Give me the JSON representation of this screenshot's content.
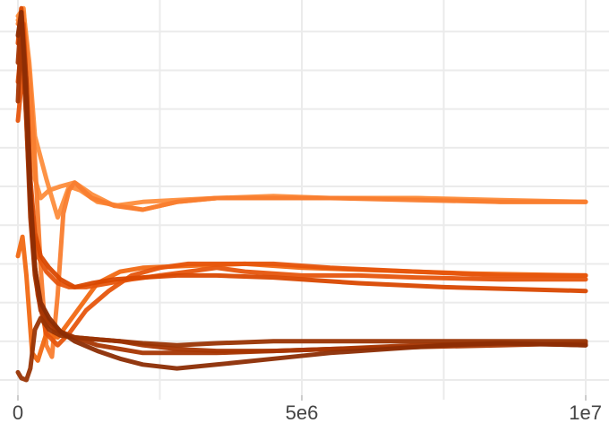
{
  "chart_data": {
    "type": "line",
    "title": "",
    "xlabel": "",
    "ylabel": "",
    "xlim": [
      0,
      10000000
    ],
    "ylim": [
      0,
      10
    ],
    "grid": true,
    "legend": "none",
    "x_ticks": [
      {
        "value": 0,
        "label": "0"
      },
      {
        "value": 5000000,
        "label": "5e6"
      },
      {
        "value": 10000000,
        "label": "1e7"
      }
    ],
    "y_gridlines": [
      0.3,
      1.3,
      2.3,
      3.3,
      4.3,
      5.3,
      6.3,
      7.3,
      8.3,
      9.3
    ],
    "series": [
      {
        "color": "#fd8d3c",
        "points": [
          [
            0,
            9.6
          ],
          [
            100000,
            9.8
          ],
          [
            200000,
            8.5
          ],
          [
            300000,
            6.6
          ],
          [
            500000,
            5.5
          ],
          [
            700000,
            4.5
          ],
          [
            900000,
            5.3
          ],
          [
            1100000,
            5.2
          ],
          [
            1400000,
            4.9
          ],
          [
            1800000,
            4.8
          ],
          [
            2200000,
            4.7
          ],
          [
            2800000,
            4.9
          ],
          [
            3500000,
            5.0
          ],
          [
            4500000,
            5.0
          ],
          [
            5500000,
            5.0
          ],
          [
            7000000,
            5.0
          ],
          [
            8500000,
            4.9
          ],
          [
            10000000,
            4.9
          ]
        ]
      },
      {
        "color": "#fd8d3c",
        "points": [
          [
            0,
            9.7
          ],
          [
            100000,
            9.9
          ],
          [
            200000,
            8.0
          ],
          [
            300000,
            5.5
          ],
          [
            400000,
            5.0
          ],
          [
            550000,
            5.2
          ],
          [
            750000,
            5.3
          ],
          [
            1000000,
            5.4
          ],
          [
            1300000,
            5.1
          ],
          [
            1700000,
            4.8
          ],
          [
            2200000,
            4.9
          ],
          [
            2800000,
            4.95
          ],
          [
            3500000,
            5.0
          ],
          [
            4500000,
            5.05
          ],
          [
            5500000,
            5.0
          ],
          [
            7000000,
            5.0
          ],
          [
            8500000,
            4.95
          ],
          [
            10000000,
            4.9
          ]
        ]
      },
      {
        "color": "#f97d2f",
        "points": [
          [
            0,
            9.5
          ],
          [
            80000,
            9.8
          ],
          [
            200000,
            8.2
          ],
          [
            300000,
            6.0
          ],
          [
            400000,
            3.2
          ],
          [
            500000,
            1.2
          ],
          [
            600000,
            0.9
          ],
          [
            700000,
            2.5
          ],
          [
            800000,
            4.6
          ],
          [
            900000,
            5.2
          ],
          [
            1000000,
            5.4
          ],
          [
            1300000,
            5.0
          ],
          [
            1700000,
            4.8
          ],
          [
            2200000,
            4.7
          ],
          [
            2800000,
            4.9
          ],
          [
            3500000,
            5.0
          ],
          [
            4500000,
            5.0
          ],
          [
            5500000,
            5.0
          ],
          [
            7000000,
            4.95
          ],
          [
            8500000,
            4.9
          ],
          [
            10000000,
            4.9
          ]
        ]
      },
      {
        "color": "#f16913",
        "points": [
          [
            0,
            3.5
          ],
          [
            80000,
            4.0
          ],
          [
            150000,
            3.0
          ],
          [
            250000,
            1.0
          ],
          [
            350000,
            0.8
          ],
          [
            500000,
            1.5
          ],
          [
            700000,
            1.4
          ],
          [
            1000000,
            2.0
          ],
          [
            1400000,
            2.8
          ],
          [
            1800000,
            3.1
          ],
          [
            2200000,
            3.2
          ],
          [
            3000000,
            3.25
          ],
          [
            4000000,
            3.3
          ],
          [
            5000000,
            3.2
          ],
          [
            6000000,
            3.15
          ],
          [
            7000000,
            3.1
          ],
          [
            8000000,
            3.05
          ],
          [
            10000000,
            3.0
          ]
        ]
      },
      {
        "color": "#e6550d",
        "points": [
          [
            0,
            8.0
          ],
          [
            100000,
            9.5
          ],
          [
            180000,
            7.0
          ],
          [
            250000,
            4.0
          ],
          [
            350000,
            2.5
          ],
          [
            500000,
            1.5
          ],
          [
            700000,
            1.2
          ],
          [
            900000,
            1.5
          ],
          [
            1200000,
            2.1
          ],
          [
            1600000,
            2.6
          ],
          [
            2000000,
            3.0
          ],
          [
            2500000,
            3.2
          ],
          [
            3000000,
            3.3
          ],
          [
            3500000,
            3.3
          ],
          [
            4500000,
            3.3
          ],
          [
            5500000,
            3.2
          ],
          [
            7000000,
            3.1
          ],
          [
            8500000,
            3.0
          ],
          [
            10000000,
            3.0
          ]
        ]
      },
      {
        "color": "#e6550d",
        "points": [
          [
            0,
            7.0
          ],
          [
            100000,
            8.5
          ],
          [
            180000,
            6.0
          ],
          [
            250000,
            4.2
          ],
          [
            350000,
            3.5
          ],
          [
            500000,
            3.1
          ],
          [
            700000,
            2.8
          ],
          [
            900000,
            2.7
          ],
          [
            1200000,
            2.7
          ],
          [
            1600000,
            2.8
          ],
          [
            2000000,
            2.9
          ],
          [
            2500000,
            3.0
          ],
          [
            3000000,
            3.1
          ],
          [
            3500000,
            3.2
          ],
          [
            4000000,
            3.1
          ],
          [
            5000000,
            3.0
          ],
          [
            6000000,
            3.0
          ],
          [
            7000000,
            2.95
          ],
          [
            8500000,
            2.9
          ],
          [
            10000000,
            2.9
          ]
        ]
      },
      {
        "color": "#d94801",
        "points": [
          [
            0,
            9.0
          ],
          [
            60000,
            9.9
          ],
          [
            150000,
            8.0
          ],
          [
            220000,
            5.5
          ],
          [
            300000,
            4.1
          ],
          [
            400000,
            3.5
          ],
          [
            550000,
            3.2
          ],
          [
            750000,
            2.9
          ],
          [
            1000000,
            2.7
          ],
          [
            1300000,
            2.8
          ],
          [
            1700000,
            2.9
          ],
          [
            2200000,
            2.95
          ],
          [
            2800000,
            3.0
          ],
          [
            3500000,
            3.0
          ],
          [
            4500000,
            2.95
          ],
          [
            6000000,
            2.8
          ],
          [
            7500000,
            2.7
          ],
          [
            10000000,
            2.6
          ]
        ]
      },
      {
        "color": "#a63603",
        "points": [
          [
            0,
            8.5
          ],
          [
            60000,
            9.8
          ],
          [
            150000,
            8.0
          ],
          [
            220000,
            5.2
          ],
          [
            300000,
            3.2
          ],
          [
            400000,
            2.2
          ],
          [
            550000,
            1.8
          ],
          [
            750000,
            1.55
          ],
          [
            1000000,
            1.4
          ],
          [
            1400000,
            1.2
          ],
          [
            1800000,
            1.1
          ],
          [
            2200000,
            1.0
          ],
          [
            2800000,
            1.0
          ],
          [
            3500000,
            1.0
          ],
          [
            4500000,
            1.05
          ],
          [
            5500000,
            1.1
          ],
          [
            7000000,
            1.2
          ],
          [
            8500000,
            1.25
          ],
          [
            10000000,
            1.2
          ]
        ]
      },
      {
        "color": "#a63603",
        "points": [
          [
            0,
            7.5
          ],
          [
            60000,
            9.5
          ],
          [
            150000,
            7.0
          ],
          [
            220000,
            4.5
          ],
          [
            300000,
            3.0
          ],
          [
            400000,
            2.1
          ],
          [
            550000,
            1.7
          ],
          [
            750000,
            1.5
          ],
          [
            1000000,
            1.4
          ],
          [
            1400000,
            1.35
          ],
          [
            1800000,
            1.3
          ],
          [
            2200000,
            1.2
          ],
          [
            2800000,
            1.1
          ],
          [
            3500000,
            1.05
          ],
          [
            4500000,
            1.05
          ],
          [
            5500000,
            1.1
          ],
          [
            7000000,
            1.15
          ],
          [
            8500000,
            1.2
          ],
          [
            10000000,
            1.25
          ]
        ]
      },
      {
        "color": "#993404",
        "points": [
          [
            0,
            0.5
          ],
          [
            60000,
            0.35
          ],
          [
            150000,
            0.3
          ],
          [
            220000,
            0.6
          ],
          [
            300000,
            1.6
          ],
          [
            400000,
            1.9
          ],
          [
            550000,
            1.6
          ],
          [
            750000,
            1.45
          ],
          [
            1000000,
            1.4
          ],
          [
            1400000,
            1.35
          ],
          [
            1800000,
            1.3
          ],
          [
            2200000,
            1.25
          ],
          [
            2800000,
            1.2
          ],
          [
            3500000,
            1.25
          ],
          [
            4500000,
            1.3
          ],
          [
            5500000,
            1.3
          ],
          [
            7000000,
            1.3
          ],
          [
            8500000,
            1.3
          ],
          [
            10000000,
            1.3
          ]
        ]
      },
      {
        "color": "#8c2d04",
        "points": [
          [
            0,
            9.2
          ],
          [
            60000,
            9.8
          ],
          [
            150000,
            7.5
          ],
          [
            220000,
            5.0
          ],
          [
            300000,
            3.2
          ],
          [
            400000,
            2.3
          ],
          [
            550000,
            1.9
          ],
          [
            750000,
            1.55
          ],
          [
            1000000,
            1.3
          ],
          [
            1400000,
            1.05
          ],
          [
            1800000,
            0.85
          ],
          [
            2200000,
            0.7
          ],
          [
            2800000,
            0.6
          ],
          [
            3500000,
            0.7
          ],
          [
            4500000,
            0.85
          ],
          [
            5500000,
            1.0
          ],
          [
            6500000,
            1.1
          ],
          [
            7500000,
            1.2
          ],
          [
            8500000,
            1.25
          ],
          [
            10000000,
            1.2
          ]
        ]
      }
    ]
  }
}
